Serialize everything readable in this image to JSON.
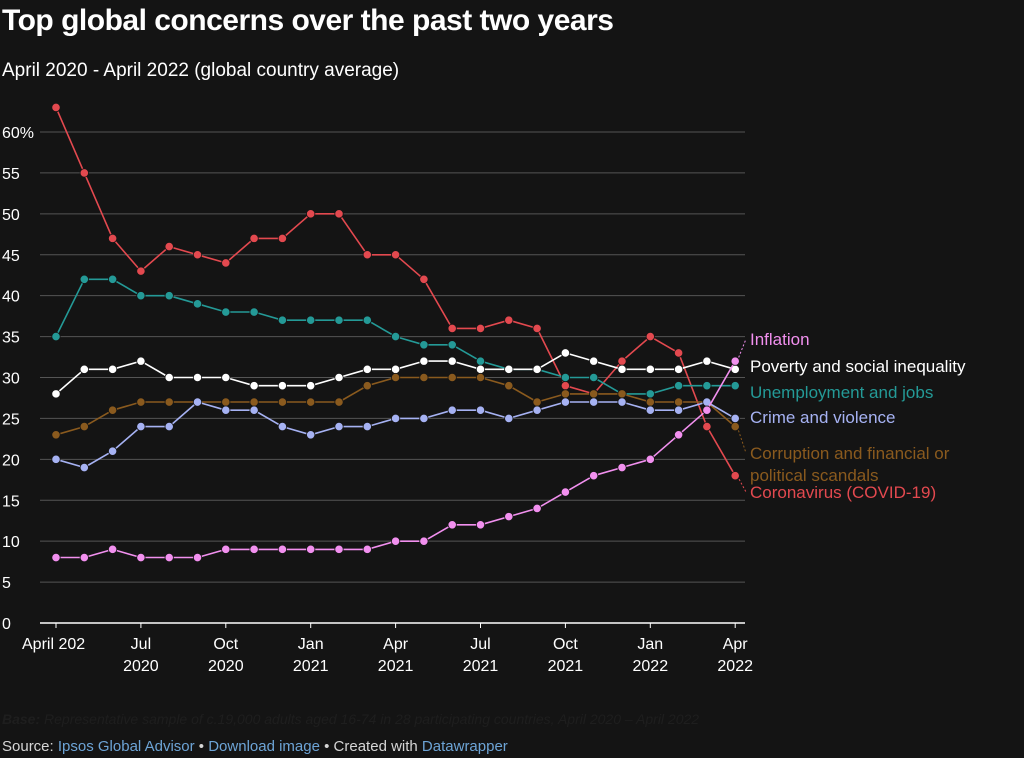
{
  "header": {
    "title": "Top global concerns over the past two years",
    "subtitle": "April 2020 - April 2022 (global country average)"
  },
  "chart_data": {
    "type": "line",
    "title": "Top global concerns over the past two years",
    "subtitle": "April 2020 - April 2022 (global country average)",
    "xlabel": "",
    "ylabel": "",
    "ylim": [
      0,
      60
    ],
    "y_ticks": [
      0,
      5,
      10,
      15,
      20,
      25,
      30,
      35,
      40,
      45,
      50,
      55,
      60
    ],
    "y_tick_labels": [
      "0",
      "5",
      "10",
      "15",
      "20",
      "25",
      "30",
      "35",
      "40",
      "45",
      "50",
      "55",
      "60%"
    ],
    "x": [
      "2020-04",
      "2020-05",
      "2020-06",
      "2020-07",
      "2020-08",
      "2020-09",
      "2020-10",
      "2020-11",
      "2020-12",
      "2021-01",
      "2021-02",
      "2021-03",
      "2021-04",
      "2021-05",
      "2021-06",
      "2021-07",
      "2021-08",
      "2021-09",
      "2021-10",
      "2021-11",
      "2021-12",
      "2022-01",
      "2022-02",
      "2022-03",
      "2022-04"
    ],
    "x_ticks": [
      {
        "x": "2020-04",
        "line1": "April 202",
        "line2": ""
      },
      {
        "x": "2020-07",
        "line1": "Jul",
        "line2": "2020"
      },
      {
        "x": "2020-10",
        "line1": "Oct",
        "line2": "2020"
      },
      {
        "x": "2021-01",
        "line1": "Jan",
        "line2": "2021"
      },
      {
        "x": "2021-04",
        "line1": "Apr",
        "line2": "2021"
      },
      {
        "x": "2021-07",
        "line1": "Jul",
        "line2": "2021"
      },
      {
        "x": "2021-10",
        "line1": "Oct",
        "line2": "2021"
      },
      {
        "x": "2022-01",
        "line1": "Jan",
        "line2": "2022"
      },
      {
        "x": "2022-04",
        "line1": "Apr",
        "line2": "2022"
      }
    ],
    "grid": true,
    "legend": "direct labels at right end of lines",
    "series": [
      {
        "name": "Coronavirus (COVID-19)",
        "color": "#e3494f",
        "values": [
          63,
          55,
          47,
          43,
          46,
          45,
          44,
          47,
          47,
          50,
          50,
          45,
          45,
          42,
          36,
          36,
          37,
          36,
          29,
          28,
          32,
          35,
          33,
          24,
          18
        ]
      },
      {
        "name": "Unemployment and jobs",
        "color": "#249a97",
        "values": [
          35,
          42,
          42,
          40,
          40,
          39,
          38,
          38,
          37,
          37,
          37,
          37,
          35,
          34,
          34,
          32,
          31,
          31,
          30,
          30,
          28,
          28,
          29,
          29,
          29
        ]
      },
      {
        "name": "Poverty and social inequality",
        "color": "#ffffff",
        "values": [
          28,
          31,
          31,
          32,
          30,
          30,
          30,
          29,
          29,
          29,
          30,
          31,
          31,
          32,
          32,
          31,
          31,
          31,
          33,
          32,
          31,
          31,
          31,
          32,
          31
        ]
      },
      {
        "name": "Corruption and financial or political scandals",
        "color": "#8a5a1e",
        "values": [
          23,
          24,
          26,
          27,
          27,
          27,
          27,
          27,
          27,
          27,
          27,
          29,
          30,
          30,
          30,
          30,
          29,
          27,
          28,
          28,
          28,
          27,
          27,
          27,
          24
        ]
      },
      {
        "name": "Crime and violence",
        "color": "#a6b2f3",
        "values": [
          20,
          19,
          21,
          24,
          24,
          27,
          26,
          26,
          24,
          23,
          24,
          24,
          25,
          25,
          26,
          26,
          25,
          26,
          27,
          27,
          27,
          26,
          26,
          27,
          25
        ]
      },
      {
        "name": "Inflation",
        "color": "#f290ef",
        "values": [
          8,
          8,
          9,
          8,
          8,
          8,
          9,
          9,
          9,
          9,
          9,
          9,
          10,
          10,
          12,
          12,
          13,
          14,
          16,
          18,
          19,
          20,
          23,
          26,
          32
        ]
      }
    ],
    "end_labels": [
      {
        "series": "Inflation",
        "lines": [
          "Inflation"
        ],
        "color": "#f290ef"
      },
      {
        "series": "Poverty and social inequality",
        "lines": [
          "Poverty and social inequality"
        ],
        "color": "#ffffff"
      },
      {
        "series": "Unemployment and jobs",
        "lines": [
          "Unemployment and jobs"
        ],
        "color": "#249a97"
      },
      {
        "series": "Crime and violence",
        "lines": [
          "Crime and violence"
        ],
        "color": "#a6b2f3"
      },
      {
        "series": "Corruption and financial or political scandals",
        "lines": [
          "Corruption and financial or",
          "political scandals"
        ],
        "color": "#8a5a1e"
      },
      {
        "series": "Coronavirus (COVID-19)",
        "lines": [
          "Coronavirus (COVID-19)"
        ],
        "color": "#e3494f"
      }
    ]
  },
  "notes": {
    "base_label": "Base:",
    "base_text": " Representative sample of c.19,000 adults aged 16-74 in 28 participating countries, April 2020 – April 2022"
  },
  "footer": {
    "source_label": "Source: ",
    "source_link": "Ipsos Global Advisor",
    "separator1": " • ",
    "download_link": "Download image",
    "separator2": " • ",
    "created_with": "Created with ",
    "datawrapper_link": "Datawrapper"
  },
  "colors": {
    "background": "#141414",
    "grid": "#555555",
    "axis": "#ffffff",
    "tick_text": "#ffffff",
    "link": "#6da4d6"
  }
}
